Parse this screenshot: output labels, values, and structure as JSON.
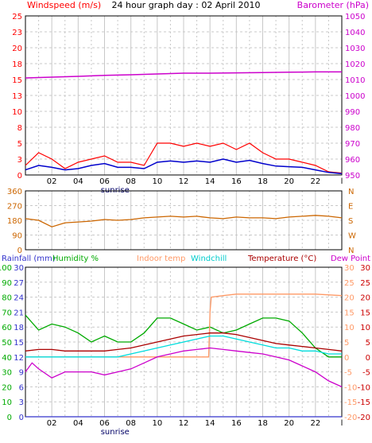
{
  "header": {
    "windspeed_label": "Windspeed (m/s)",
    "title": "24 hour graph day : 02 April 2010",
    "barometer_label": "Barometer (hPa)"
  },
  "sunrise_label": "sunrise",
  "mid_header": {
    "rainfall": "Rainfall (mm)",
    "humidity": "Humidity %",
    "indoor": "Indoor temp",
    "windchill": "Windchill",
    "temperature": "Temperature (°C)",
    "dewpoint": "Dew Point"
  },
  "colors": {
    "windspeed": "#ff0000",
    "windgust": "#0000cc",
    "barometer": "#cc00cc",
    "direction": "#cc6600",
    "rainfall": "#3333cc",
    "humidity": "#00aa00",
    "indoor": "#ff9966",
    "windchill": "#00dddd",
    "temperature": "#aa0000",
    "dewpoint": "#cc00cc",
    "temp_axis": "#cc0000",
    "grid": "#c8c8c8"
  },
  "chart_data": [
    {
      "type": "line",
      "name": "wind-barometer",
      "x_ticks": [
        "02",
        "04",
        "06",
        "08",
        "10",
        "12",
        "14",
        "16",
        "18",
        "20",
        "22",
        "l"
      ],
      "y_left": {
        "label": "Windspeed (m/s)",
        "ticks": [
          "0",
          "3",
          "5",
          "8",
          "10",
          "13",
          "15",
          "18",
          "20",
          "23",
          "25"
        ],
        "range": [
          0,
          25
        ]
      },
      "y_right": {
        "label": "Barometer (hPa)",
        "ticks": [
          "950",
          "960",
          "970",
          "980",
          "990",
          "1000",
          "1010",
          "1020",
          "1030",
          "1040",
          "1050"
        ],
        "range": [
          950,
          1050
        ]
      },
      "series": [
        {
          "name": "Windspeed (m/s)",
          "axis": "left",
          "color": "#ff0000",
          "x": [
            0,
            1,
            2,
            3,
            4,
            5,
            6,
            7,
            8,
            9,
            10,
            11,
            12,
            13,
            14,
            15,
            16,
            17,
            18,
            19,
            20,
            21,
            22,
            23,
            24
          ],
          "y": [
            1.5,
            3.5,
            2.5,
            1.0,
            2.0,
            2.5,
            3.0,
            2.0,
            2.0,
            1.5,
            5.0,
            5.0,
            4.5,
            5.0,
            4.5,
            5.0,
            4.0,
            5.0,
            3.5,
            2.5,
            2.5,
            2.0,
            1.5,
            0.5,
            0.3
          ]
        },
        {
          "name": "Wind average",
          "axis": "left",
          "color": "#0000cc",
          "x": [
            0,
            1,
            2,
            3,
            4,
            5,
            6,
            7,
            8,
            9,
            10,
            11,
            12,
            13,
            14,
            15,
            16,
            17,
            18,
            19,
            20,
            21,
            22,
            23,
            24
          ],
          "y": [
            0.8,
            1.5,
            1.2,
            0.8,
            1.0,
            1.5,
            1.8,
            1.2,
            1.2,
            1.0,
            2.0,
            2.2,
            2.0,
            2.2,
            2.0,
            2.5,
            2.0,
            2.3,
            1.8,
            1.4,
            1.3,
            1.2,
            0.8,
            0.4,
            0.2
          ]
        },
        {
          "name": "Barometer (hPa)",
          "axis": "right",
          "color": "#cc00cc",
          "x": [
            0,
            2,
            4,
            6,
            8,
            10,
            12,
            14,
            16,
            18,
            20,
            22,
            24
          ],
          "y": [
            1011,
            1011.5,
            1012,
            1012.6,
            1013,
            1013.5,
            1014,
            1014,
            1014.2,
            1014.4,
            1014.6,
            1014.8,
            1014.8
          ]
        }
      ]
    },
    {
      "type": "line",
      "name": "wind-direction",
      "y_left": {
        "ticks": [
          "0",
          "90",
          "180",
          "270",
          "360"
        ],
        "range": [
          0,
          360
        ]
      },
      "y_right": {
        "ticks": [
          "N",
          "W",
          "S",
          "E",
          "N"
        ]
      },
      "series": [
        {
          "name": "Wind direction",
          "color": "#cc6600",
          "x": [
            0,
            1,
            2,
            3,
            4,
            5,
            6,
            7,
            8,
            9,
            10,
            11,
            12,
            13,
            14,
            15,
            16,
            17,
            18,
            19,
            20,
            21,
            22,
            23,
            24
          ],
          "y": [
            190,
            180,
            140,
            165,
            170,
            175,
            185,
            180,
            185,
            195,
            200,
            205,
            200,
            205,
            195,
            190,
            200,
            195,
            195,
            190,
            200,
            205,
            210,
            205,
            195
          ]
        }
      ]
    },
    {
      "type": "line",
      "name": "temperature-humidity-rain",
      "x_ticks": [
        "02",
        "04",
        "06",
        "08",
        "10",
        "12",
        "14",
        "16",
        "18",
        "20",
        "22",
        "l"
      ],
      "y_left_outer": {
        "label": "Humidity %",
        "ticks": [
          "0",
          "10",
          "20",
          "30",
          "40",
          "50",
          "60",
          "70",
          "80",
          "90",
          "100"
        ],
        "range": [
          0,
          100
        ]
      },
      "y_left_inner": {
        "label": "Rainfall (mm)",
        "ticks": [
          "0",
          "3",
          "6",
          "9",
          "12",
          "15",
          "18",
          "21",
          "24",
          "27",
          "30"
        ],
        "range": [
          0,
          30
        ]
      },
      "y_right_inner": {
        "label": "Indoor temp",
        "ticks": [
          "-20",
          "-15",
          "-10",
          "-5",
          "0",
          "5",
          "10",
          "15",
          "20",
          "25",
          "30"
        ],
        "range": [
          -20,
          30
        ]
      },
      "y_right_outer": {
        "label": "Temperature (°C)",
        "ticks": [
          "-20",
          "-15",
          "-10",
          "-5",
          "0",
          "5",
          "10",
          "15",
          "20",
          "25",
          "30"
        ],
        "range": [
          -20,
          30
        ]
      },
      "series": [
        {
          "name": "Humidity %",
          "axis": "humidity",
          "color": "#00aa00",
          "x": [
            0,
            1,
            2,
            3,
            4,
            5,
            6,
            7,
            8,
            9,
            10,
            11,
            12,
            13,
            14,
            15,
            16,
            17,
            18,
            19,
            20,
            21,
            22,
            23,
            24
          ],
          "y": [
            68,
            58,
            62,
            60,
            56,
            50,
            54,
            50,
            50,
            56,
            66,
            66,
            62,
            58,
            60,
            56,
            58,
            62,
            66,
            66,
            64,
            56,
            46,
            40,
            40
          ]
        },
        {
          "name": "Indoor temp",
          "axis": "temp",
          "color": "#ff9966",
          "x": [
            0,
            9,
            10,
            13.9,
            14,
            14.1,
            15,
            16,
            18,
            20,
            22,
            24
          ],
          "y": [
            0,
            0,
            0,
            0,
            15,
            20,
            20.5,
            21,
            21,
            21,
            21,
            20.5
          ]
        },
        {
          "name": "Windchill",
          "axis": "temp",
          "color": "#00dddd",
          "x": [
            0,
            1,
            2,
            3,
            4,
            5,
            6,
            7,
            8,
            9,
            10,
            11,
            12,
            13,
            14,
            15,
            16,
            17,
            18,
            19,
            20,
            21,
            22,
            23,
            24
          ],
          "y": [
            0,
            0,
            0,
            0,
            0,
            0,
            0,
            0,
            1,
            2,
            3,
            4,
            5,
            6,
            7,
            7,
            6,
            5,
            4,
            3,
            3,
            2,
            2,
            1,
            1
          ]
        },
        {
          "name": "Temperature (°C)",
          "axis": "temp",
          "color": "#aa0000",
          "x": [
            0,
            1,
            2,
            3,
            4,
            5,
            6,
            7,
            8,
            9,
            10,
            11,
            12,
            13,
            14,
            15,
            16,
            17,
            18,
            19,
            20,
            21,
            22,
            23,
            24
          ],
          "y": [
            2,
            2.5,
            2.5,
            2,
            2,
            2,
            2,
            2.5,
            3,
            4,
            5,
            6,
            7,
            7.5,
            8,
            8,
            7.5,
            6.5,
            5.5,
            4.5,
            4,
            3.5,
            3,
            2.5,
            2
          ]
        },
        {
          "name": "Dew Point",
          "axis": "temp",
          "color": "#cc00cc",
          "x": [
            0,
            0.5,
            1,
            2,
            3,
            4,
            5,
            6,
            7,
            8,
            9,
            10,
            11,
            12,
            13,
            14,
            15,
            16,
            17,
            18,
            19,
            20,
            21,
            22,
            23,
            24
          ],
          "y": [
            -5,
            -2,
            -4,
            -7,
            -5,
            -5,
            -5,
            -6,
            -5,
            -4,
            -2,
            0,
            1,
            2,
            2.5,
            3,
            2.5,
            2,
            1.5,
            1,
            0,
            -1,
            -3,
            -5,
            -8,
            -10
          ]
        },
        {
          "name": "Rainfall (mm)",
          "axis": "rain",
          "color": "#3333cc",
          "x": [
            0,
            24
          ],
          "y": [
            0,
            0
          ]
        }
      ]
    }
  ]
}
